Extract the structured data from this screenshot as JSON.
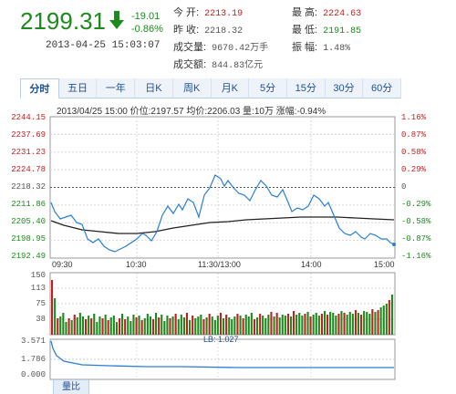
{
  "header": {
    "price": "2199.31",
    "change": "-19.01",
    "change_pct": "-0.86%",
    "datetime": "2013-04-25  15:03:07"
  },
  "stats": {
    "open_label": "今  开:",
    "open": "2213.19",
    "prev_label": "昨  收:",
    "prev": "2218.32",
    "volume_label": "成交量:",
    "volume": "9670.42万手",
    "amount_label": "成交额:",
    "amount": "844.83亿元",
    "high_label": "最  高:",
    "high": "2224.63",
    "low_label": "最  低:",
    "low": "2191.85",
    "amp_label": "振  幅:",
    "amp": "1.48%"
  },
  "tabs": [
    {
      "label": "分时",
      "active": true
    },
    {
      "label": "五日"
    },
    {
      "label": "一年"
    },
    {
      "label": "日K"
    },
    {
      "label": "周K"
    },
    {
      "label": "月K"
    },
    {
      "label": "5分"
    },
    {
      "label": "15分"
    },
    {
      "label": "30分"
    },
    {
      "label": "60分"
    }
  ],
  "info_line": "2013/04/25 15:00  价位:2197.57  均价:2206.03  量:10万  涨幅:-0.94%",
  "price_axis": {
    "left": [
      "2244.15",
      "2237.69",
      "2231.23",
      "2224.78",
      "2218.32",
      "2211.86",
      "2205.40",
      "2198.95",
      "2192.49"
    ],
    "right": [
      "1.16%",
      "0.87%",
      "0.58%",
      "0.29%",
      "0",
      "-0.29%",
      "-0.58%",
      "-0.87%",
      "-1.16%"
    ]
  },
  "time_labels": [
    "09:30",
    "10:30",
    "11:30/13:00",
    "14:00",
    "15:00"
  ],
  "volume_axis": [
    "150",
    "113",
    "75",
    "38"
  ],
  "ratio_axis": [
    "3.571",
    "1.786",
    "0.000"
  ],
  "lb_label": "LB: 1.027",
  "bottom_tab": "量比",
  "colors": {
    "up": "#c21f1f",
    "down": "#1c8a1c",
    "price_line": "#2a7fd4",
    "avg_line": "#222222"
  }
}
